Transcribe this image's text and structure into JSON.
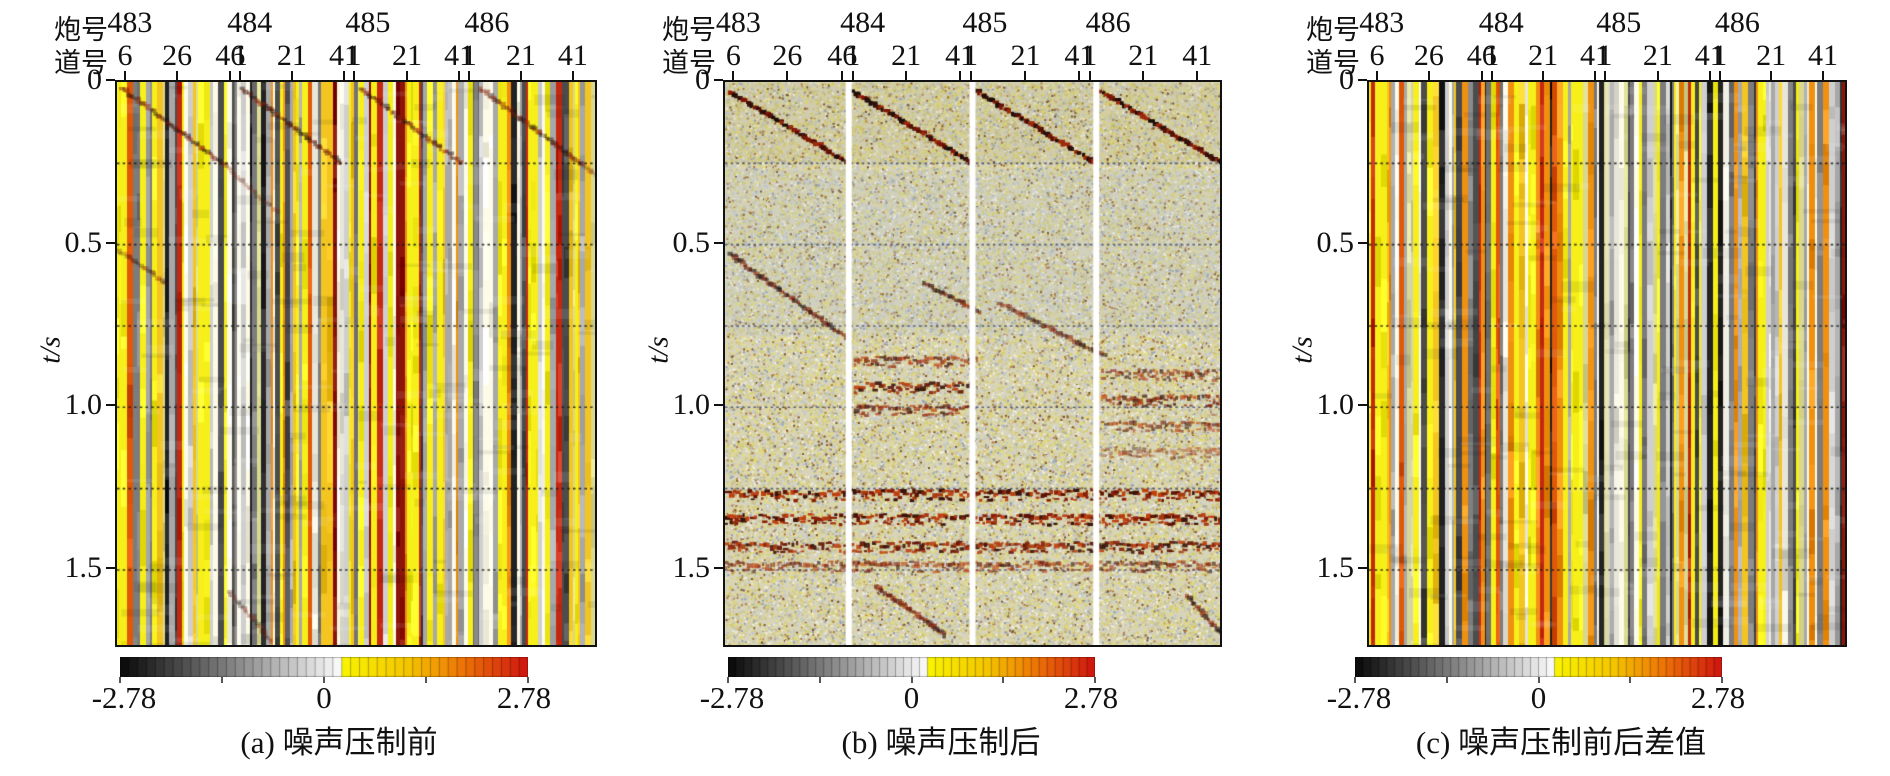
{
  "figure": {
    "header": {
      "shot_label": "炮号",
      "trace_label": "道号"
    },
    "shots": [
      "483",
      "484",
      "485",
      "486"
    ],
    "shot_fracs": [
      0.031,
      0.282,
      0.529,
      0.778
    ],
    "traces": [
      "6",
      "26",
      "46",
      "1",
      "21",
      "41",
      "1",
      "21",
      "41",
      "1",
      "21",
      "41"
    ],
    "trace_fracs": [
      0.021,
      0.13,
      0.241,
      0.262,
      0.37,
      0.479,
      0.5,
      0.611,
      0.72,
      0.741,
      0.849,
      0.958
    ],
    "time_axis": {
      "label": "t/s",
      "ticks": [
        {
          "t": 0,
          "label": "0"
        },
        {
          "t": 0.5,
          "label": "0.5"
        },
        {
          "t": 1.0,
          "label": "1.0"
        },
        {
          "t": 1.5,
          "label": "1.5"
        }
      ],
      "t_max": 1.73,
      "grid_interval": 0.25
    },
    "colorbar": {
      "min": "-2.78",
      "mid": "0",
      "max": "2.78",
      "segments": 46,
      "colors": {
        "neg": "#080808",
        "zero": "#ffffff",
        "yellow": "#f8f200",
        "orange": "#ee7a06",
        "max": "#cf1410"
      }
    },
    "panels": [
      {
        "id": "a",
        "caption": "(a) 噪声压制前",
        "kind": "stripes",
        "seed": 7
      },
      {
        "id": "b",
        "caption": "(b) 噪声压制后",
        "kind": "speckle",
        "seed": 11
      },
      {
        "id": "c",
        "caption": "(c) 噪声压制前后差值",
        "kind": "stripes",
        "seed": 23
      }
    ],
    "stripe_palette": [
      {
        "c": "#f6ef1a",
        "w": 22
      },
      {
        "c": "#fdfbe8",
        "w": 10
      },
      {
        "c": "#e8e6d8",
        "w": 6
      },
      {
        "c": "#cfcfcf",
        "w": 9
      },
      {
        "c": "#a8a8a8",
        "w": 8
      },
      {
        "c": "#7c7c7c",
        "w": 7
      },
      {
        "c": "#4c4c4c",
        "w": 6
      },
      {
        "c": "#222222",
        "w": 5
      },
      {
        "c": "#f4c520",
        "w": 6
      },
      {
        "c": "#f09010",
        "w": 6
      },
      {
        "c": "#e05808",
        "w": 4
      },
      {
        "c": "#c42810",
        "w": 4
      },
      {
        "c": "#8c1408",
        "w": 2
      },
      {
        "c": "#d8d890",
        "w": 5
      }
    ],
    "speckle_base": "#d8d4ba",
    "speckle_palette": [
      {
        "c": "#e4dc7e",
        "w": 7
      },
      {
        "c": "#cfc98e",
        "w": 5
      },
      {
        "c": "#bfc6cd",
        "w": 5
      },
      {
        "c": "#f0eee2",
        "w": 4
      },
      {
        "c": "#93a0ad",
        "w": 2
      },
      {
        "c": "#ad7a45",
        "w": 2
      },
      {
        "c": "#7a5026",
        "w": 1
      },
      {
        "c": "#d6ce62",
        "w": 4
      },
      {
        "c": "#c8b98a",
        "w": 3
      }
    ]
  },
  "chart_data": {
    "type": "heatmap",
    "title": "",
    "x_axis": {
      "row1_label": "炮号",
      "row1_values": [
        "483",
        "484",
        "485",
        "486"
      ],
      "row2_label": "道号",
      "row2_values": [
        "6",
        "26",
        "46",
        "1",
        "21",
        "41",
        "1",
        "21",
        "41",
        "1",
        "21",
        "41"
      ],
      "gathers": 4
    },
    "y_axis": {
      "label": "t/s",
      "ticks": [
        0,
        0.5,
        1.0,
        1.5
      ],
      "range": [
        0,
        1.73
      ],
      "grid_interval": 0.25,
      "grid_style": "dotted"
    },
    "color_scale": {
      "min": -2.78,
      "mid": 0,
      "max": 2.78,
      "style": "discrete blocks, black-gray-white-yellow-orange-red"
    },
    "panels": [
      {
        "name": "(a) 噪声压制前",
        "content": "raw shot gathers dominated by vertical high-amplitude noise stripes (yellow/gray/black/red)",
        "events": [
          {
            "type": "linear_event",
            "x0": 0.005,
            "t0": 0.02,
            "x1": 0.215,
            "t1": 0.25,
            "weight": 0.55
          },
          {
            "type": "linear_event",
            "x0": 0.215,
            "t0": 0.25,
            "x1": 0.33,
            "t1": 0.4,
            "weight": 0.25
          },
          {
            "type": "linear_event",
            "x0": 0.255,
            "t0": 0.02,
            "x1": 0.465,
            "t1": 0.25,
            "weight": 0.55
          },
          {
            "type": "linear_event",
            "x0": 0.505,
            "t0": 0.02,
            "x1": 0.715,
            "t1": 0.25,
            "weight": 0.55
          },
          {
            "type": "linear_event",
            "x0": 0.755,
            "t0": 0.02,
            "x1": 0.965,
            "t1": 0.25,
            "weight": 0.55
          },
          {
            "type": "linear_event",
            "x0": 0.965,
            "t0": 0.25,
            "x1": 1.0,
            "t1": 0.29,
            "weight": 0.25
          },
          {
            "type": "linear_event",
            "x0": 0.0,
            "t0": 0.52,
            "x1": 0.1,
            "t1": 0.62,
            "weight": 0.35
          },
          {
            "type": "linear_event",
            "x0": 0.23,
            "t0": 1.57,
            "x1": 0.32,
            "t1": 1.72,
            "weight": 0.35
          }
        ]
      },
      {
        "name": "(b) 噪声压制后",
        "content": "denoised gathers: speckled background, white gaps between 4 gathers, red first-break diagonals and horizontal reflection bands",
        "gap_fracs": [
          0.25,
          0.5,
          0.75
        ],
        "events": [
          {
            "type": "linear_event",
            "x0": 0.005,
            "t0": 0.03,
            "x1": 0.245,
            "t1": 0.25,
            "weight": 1.0
          },
          {
            "type": "linear_event",
            "x0": 0.255,
            "t0": 0.03,
            "x1": 0.495,
            "t1": 0.25,
            "weight": 1.0
          },
          {
            "type": "linear_event",
            "x0": 0.505,
            "t0": 0.03,
            "x1": 0.745,
            "t1": 0.25,
            "weight": 1.0
          },
          {
            "type": "linear_event",
            "x0": 0.755,
            "t0": 0.03,
            "x1": 1.0,
            "t1": 0.25,
            "weight": 1.0
          },
          {
            "type": "linear_event",
            "x0": 0.005,
            "t0": 0.53,
            "x1": 0.245,
            "t1": 0.79,
            "weight": 0.6
          },
          {
            "type": "linear_event",
            "x0": 0.4,
            "t0": 0.62,
            "x1": 0.51,
            "t1": 0.71,
            "weight": 0.6
          },
          {
            "type": "linear_event",
            "x0": 0.55,
            "t0": 0.68,
            "x1": 0.76,
            "t1": 0.84,
            "weight": 0.5
          },
          {
            "type": "linear_event",
            "x0": 0.3,
            "t0": 1.55,
            "x1": 0.44,
            "t1": 1.7,
            "weight": 0.6,
            "over_gap": true
          },
          {
            "type": "linear_event",
            "x0": 0.93,
            "t0": 1.58,
            "x1": 1.0,
            "t1": 1.7,
            "weight": 0.6,
            "over_gap": true
          },
          {
            "type": "reflection_band",
            "t": 0.86,
            "x0": 0.26,
            "x1": 0.5,
            "weight": 0.7
          },
          {
            "type": "reflection_band",
            "t": 0.94,
            "x0": 0.26,
            "x1": 0.5,
            "weight": 0.9
          },
          {
            "type": "reflection_band",
            "t": 1.01,
            "x0": 0.26,
            "x1": 0.5,
            "weight": 0.7
          },
          {
            "type": "reflection_band",
            "t": 0.9,
            "x0": 0.76,
            "x1": 1.0,
            "weight": 0.6
          },
          {
            "type": "reflection_band",
            "t": 0.98,
            "x0": 0.76,
            "x1": 1.0,
            "weight": 0.7
          },
          {
            "type": "reflection_band",
            "t": 1.06,
            "x0": 0.76,
            "x1": 1.0,
            "weight": 0.6
          },
          {
            "type": "reflection_band",
            "t": 1.14,
            "x0": 0.76,
            "x1": 1.0,
            "weight": 0.4
          },
          {
            "type": "reflection_band",
            "t": 1.27,
            "x0": 0.0,
            "x1": 1.0,
            "weight": 1.0
          },
          {
            "type": "reflection_band",
            "t": 1.345,
            "x0": 0.0,
            "x1": 1.0,
            "weight": 1.0
          },
          {
            "type": "reflection_band",
            "t": 1.43,
            "x0": 0.0,
            "x1": 1.0,
            "weight": 0.9
          },
          {
            "type": "reflection_band",
            "t": 1.49,
            "x0": 0.0,
            "x1": 1.0,
            "weight": 0.6
          }
        ]
      },
      {
        "name": "(c) 噪声压制前后差值",
        "content": "difference before/after suppression: removed vertical noise stripes only, no coherent events",
        "events": []
      }
    ]
  }
}
